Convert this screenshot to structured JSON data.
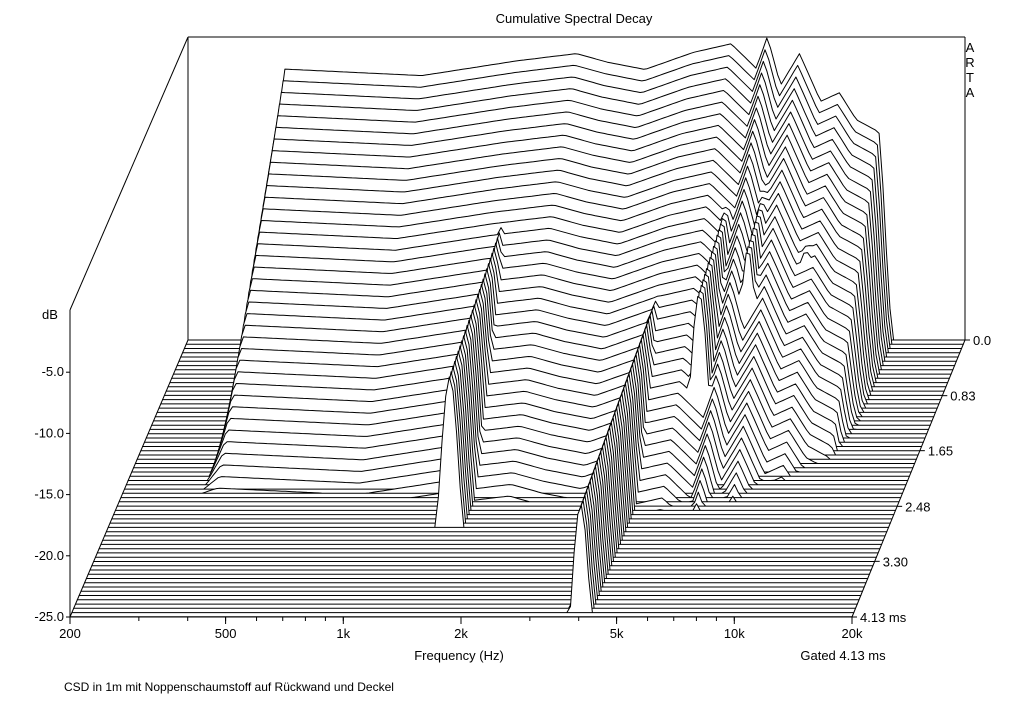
{
  "chart_data": {
    "type": "waterfall-3d",
    "title": "Cumulative Spectral Decay",
    "watermark": "ARTA",
    "xlabel": "Frequency (Hz)",
    "ylabel": "dB",
    "zlabel_unit": "ms",
    "gated_label": "Gated 4.13 ms",
    "caption": "CSD in 1m mit Noppenschaumstoff auf Rückwand und Deckel",
    "x_scale": "log",
    "xlim": [
      200,
      20000
    ],
    "ylim": [
      -25,
      0
    ],
    "zlim": [
      0,
      4.13
    ],
    "x_ticks": [
      {
        "value": 200,
        "label": "200"
      },
      {
        "value": 500,
        "label": "500"
      },
      {
        "value": 1000,
        "label": "1k"
      },
      {
        "value": 2000,
        "label": "2k"
      },
      {
        "value": 5000,
        "label": "5k"
      },
      {
        "value": 10000,
        "label": "10k"
      },
      {
        "value": 20000,
        "label": "20k"
      }
    ],
    "y_ticks": [
      {
        "value": -5,
        "label": "-5.0"
      },
      {
        "value": -10,
        "label": "-10.0"
      },
      {
        "value": -15,
        "label": "-15.0"
      },
      {
        "value": -20,
        "label": "-20.0"
      },
      {
        "value": -25,
        "label": "-25.0"
      }
    ],
    "z_ticks": [
      {
        "value": 0,
        "label": "0.0"
      },
      {
        "value": 0.83,
        "label": "0.83"
      },
      {
        "value": 1.65,
        "label": "1.65"
      },
      {
        "value": 2.48,
        "label": "2.48"
      },
      {
        "value": 3.3,
        "label": "3.30"
      },
      {
        "value": 4.13,
        "label": "4.13 ms"
      }
    ],
    "slice_count": 66,
    "slice_time_step_ms": 0.0635,
    "freq_range_hz": [
      320,
      13000
    ],
    "initial_response_db": [
      {
        "f": 320,
        "db": -2.8
      },
      {
        "f": 800,
        "db": -3.4
      },
      {
        "f": 1400,
        "db": -2.2
      },
      {
        "f": 2000,
        "db": -1.6
      },
      {
        "f": 2400,
        "db": -2.3
      },
      {
        "f": 3000,
        "db": -2.9
      },
      {
        "f": 4000,
        "db": -1.5
      },
      {
        "f": 5000,
        "db": -0.8
      },
      {
        "f": 5800,
        "db": -2.8
      },
      {
        "f": 6200,
        "db": -0.2
      },
      {
        "f": 6700,
        "db": -4.2
      },
      {
        "f": 7500,
        "db": -1.6
      },
      {
        "f": 8500,
        "db": -5.5
      },
      {
        "f": 9500,
        "db": -4.8
      },
      {
        "f": 10500,
        "db": -7.0
      },
      {
        "f": 12000,
        "db": -8.0
      },
      {
        "f": 13000,
        "db": -13.0
      }
    ],
    "resonances": [
      {
        "f": 1500,
        "db": -9.5,
        "end_ms": 2.8
      },
      {
        "f": 4000,
        "db": -13,
        "end_ms": 4.1
      },
      {
        "f": 5600,
        "db": -8,
        "end_ms": 1.9
      },
      {
        "f": 6800,
        "db": -7.5,
        "end_ms": 1.3
      },
      {
        "f": 9000,
        "db": -9.5,
        "end_ms": 0.9
      }
    ]
  }
}
